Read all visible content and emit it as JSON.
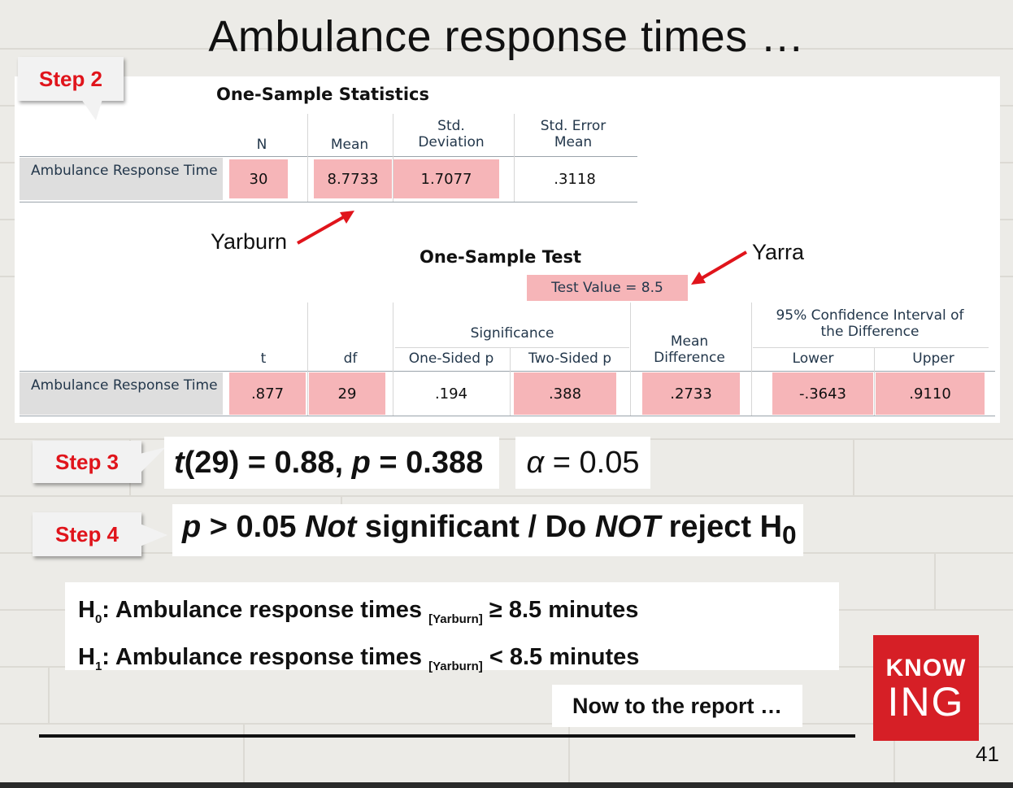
{
  "slide": {
    "title": "Ambulance response times …",
    "page_number": "41"
  },
  "steps": {
    "step2": "Step 2",
    "step3": "Step 3",
    "step4": "Step 4"
  },
  "stats_table": {
    "title": "One-Sample Statistics",
    "headers": [
      "N",
      "Mean",
      "Std. Deviation",
      "Std. Error Mean"
    ],
    "row_label": "Ambulance Response Time",
    "values": [
      "30",
      "8.7733",
      "1.7077",
      ".3118"
    ]
  },
  "test_table": {
    "title": "One-Sample Test",
    "test_value": "Test Value = 8.5",
    "significance_header": "Significance",
    "ci_header": "95% Confidence Interval of the Difference",
    "headers": [
      "t",
      "df",
      "One-Sided p",
      "Two-Sided p",
      "Mean Difference",
      "Lower",
      "Upper"
    ],
    "row_label": "Ambulance Response Time",
    "values": [
      ".877",
      "29",
      ".194",
      ".388",
      ".2733",
      "-.3643",
      ".9110"
    ]
  },
  "callouts": {
    "yarburn": "Yarburn",
    "yarra": "Yarra"
  },
  "result": {
    "t_stat": "t(29) = 0.88, p = 0.388",
    "alpha": "α = 0.05",
    "decision": "p > 0.05 Not significant / Do NOT reject H0"
  },
  "hypotheses": {
    "h0": "H0: Ambulance response times [Yarburn] ≥ 8.5 minutes",
    "h1": "H1: Ambulance response times [Yarburn] < 8.5 minutes"
  },
  "footer_note": "Now to the report …",
  "logo": {
    "line1": "KNOW",
    "line2": "ING",
    "color": "#d61f26"
  },
  "colors": {
    "highlight": "#f6b5b8",
    "step_text": "#e0141b"
  }
}
